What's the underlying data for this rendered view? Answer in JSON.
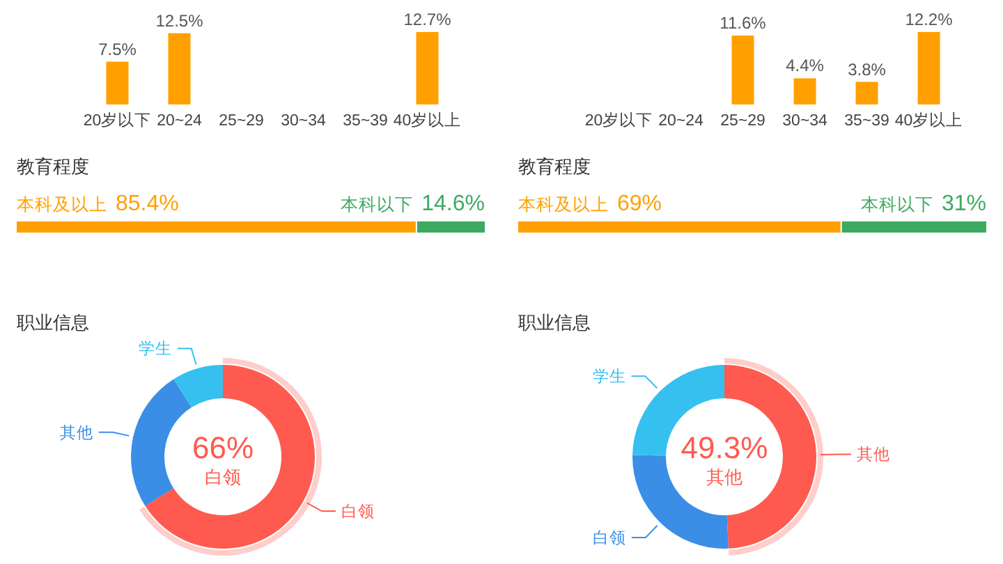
{
  "chart_data": [
    {
      "type": "bar",
      "categories": [
        "20岁以下",
        "20~24",
        "25~29",
        "30~34",
        "35~39",
        "40岁以上"
      ],
      "values": [
        7.5,
        12.5,
        null,
        null,
        null,
        12.7
      ],
      "value_labels": [
        "7.5%",
        "12.5%",
        null,
        null,
        null,
        "12.7%"
      ],
      "color": "#ffa000"
    },
    {
      "type": "bar",
      "categories": [
        "20岁以下",
        "20~24",
        "25~29",
        "30~34",
        "35~39",
        "40岁以上"
      ],
      "values": [
        null,
        null,
        11.6,
        4.4,
        3.8,
        12.2
      ],
      "value_labels": [
        null,
        null,
        "11.6%",
        "4.4%",
        "3.8%",
        "12.2%"
      ],
      "color": "#ffa000"
    },
    {
      "type": "bar",
      "orientation": "horizontal",
      "stacked": true,
      "title": "教育程度",
      "categories": [
        null
      ],
      "series": [
        {
          "name": "本科及以上",
          "color": "#ffa000",
          "values": [
            85.4
          ],
          "value_labels": [
            "85.4%"
          ]
        },
        {
          "name": "本科以下",
          "color": "#3daa62",
          "values": [
            14.6
          ],
          "value_labels": [
            "14.6%"
          ]
        }
      ]
    },
    {
      "type": "bar",
      "orientation": "horizontal",
      "stacked": true,
      "title": "教育程度",
      "categories": [
        null
      ],
      "series": [
        {
          "name": "本科及以上",
          "color": "#ffa000",
          "values": [
            69
          ],
          "value_labels": [
            "69%"
          ]
        },
        {
          "name": "本科以下",
          "color": "#3daa62",
          "values": [
            31
          ],
          "value_labels": [
            "31%"
          ]
        }
      ]
    },
    {
      "type": "donut",
      "title": "职业信息",
      "categories": [
        "白领",
        "其他",
        "学生"
      ],
      "values": [
        66,
        25,
        9
      ],
      "colors": [
        "#ff5a4f",
        "#3a8ee6",
        "#35c0f0"
      ],
      "value_labels": [
        "66%",
        null,
        null
      ]
    },
    {
      "type": "donut",
      "title": "职业信息",
      "categories": [
        "其他",
        "白领",
        "学生"
      ],
      "values": [
        49.3,
        26,
        24.7
      ],
      "colors": [
        "#ff5a4f",
        "#3a8ee6",
        "#35c0f0"
      ],
      "value_labels": [
        "49.3%",
        null,
        null
      ]
    }
  ]
}
